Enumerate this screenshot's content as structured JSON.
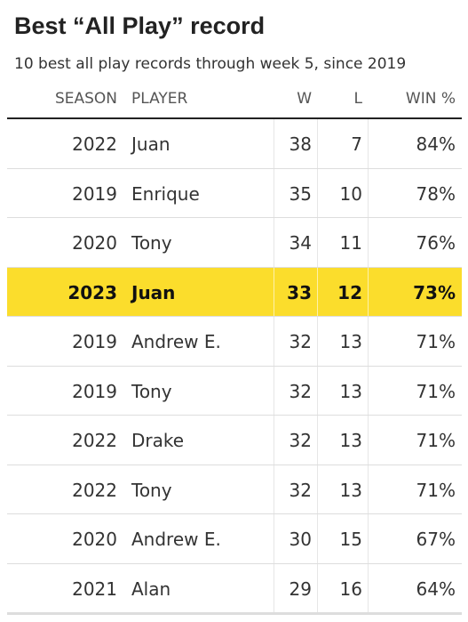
{
  "title": "Best “All Play” record",
  "subtitle": "10 best all play records through week 5, since 2019",
  "columns": {
    "season": "SEASON",
    "player": "PLAYER",
    "w": "W",
    "l": "L",
    "win_pct": "WIN %"
  },
  "highlight_color": "#fbdd2c",
  "rows": [
    {
      "season": "2022",
      "player": "Juan",
      "w": "38",
      "l": "7",
      "win_pct": "84%",
      "highlighted": false
    },
    {
      "season": "2019",
      "player": "Enrique",
      "w": "35",
      "l": "10",
      "win_pct": "78%",
      "highlighted": false
    },
    {
      "season": "2020",
      "player": "Tony",
      "w": "34",
      "l": "11",
      "win_pct": "76%",
      "highlighted": false
    },
    {
      "season": "2023",
      "player": "Juan",
      "w": "33",
      "l": "12",
      "win_pct": "73%",
      "highlighted": true
    },
    {
      "season": "2019",
      "player": "Andrew E.",
      "w": "32",
      "l": "13",
      "win_pct": "71%",
      "highlighted": false
    },
    {
      "season": "2019",
      "player": "Tony",
      "w": "32",
      "l": "13",
      "win_pct": "71%",
      "highlighted": false
    },
    {
      "season": "2022",
      "player": "Drake",
      "w": "32",
      "l": "13",
      "win_pct": "71%",
      "highlighted": false
    },
    {
      "season": "2022",
      "player": "Tony",
      "w": "32",
      "l": "13",
      "win_pct": "71%",
      "highlighted": false
    },
    {
      "season": "2020",
      "player": "Andrew E.",
      "w": "30",
      "l": "15",
      "win_pct": "67%",
      "highlighted": false
    },
    {
      "season": "2021",
      "player": "Alan",
      "w": "29",
      "l": "16",
      "win_pct": "64%",
      "highlighted": false
    }
  ]
}
